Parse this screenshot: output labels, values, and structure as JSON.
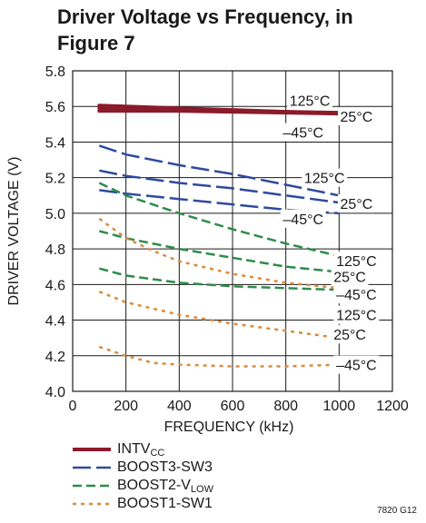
{
  "chart_data": {
    "type": "line",
    "title_lines": [
      "Driver Voltage vs Frequency, in",
      "Figure 7"
    ],
    "xlabel": "FREQUENCY (kHz)",
    "ylabel": "DRIVER VOLTAGE (V)",
    "xlim": [
      0,
      1200
    ],
    "ylim": [
      4.0,
      5.8
    ],
    "xticks": [
      0,
      200,
      400,
      600,
      800,
      1000,
      1200
    ],
    "xtick_labels": [
      "0",
      "200",
      "400",
      "600",
      "800",
      "1000",
      "1200"
    ],
    "yticks": [
      4.0,
      4.2,
      4.4,
      4.6,
      4.8,
      5.0,
      5.2,
      5.4,
      5.6,
      5.8
    ],
    "ytick_labels": [
      "4.0",
      "4.2",
      "4.4",
      "4.6",
      "4.8",
      "5.0",
      "5.2",
      "5.4",
      "5.6",
      "5.8"
    ],
    "grid": true,
    "legend_position": "bottom-left",
    "series": [
      {
        "name": "INTVCC",
        "color": "#8b1a2b",
        "dash": "solid",
        "width": 4,
        "temp": "125°C",
        "x": [
          100,
          200,
          400,
          600,
          800,
          1000
        ],
        "y": [
          5.605,
          5.6,
          5.59,
          5.58,
          5.57,
          5.56
        ]
      },
      {
        "name": "INTVCC",
        "color": "#8b1a2b",
        "dash": "solid",
        "width": 4,
        "temp": "25°C",
        "x": [
          100,
          200,
          400,
          600,
          800,
          1000
        ],
        "y": [
          5.59,
          5.585,
          5.58,
          5.575,
          5.57,
          5.565
        ]
      },
      {
        "name": "INTVCC",
        "color": "#8b1a2b",
        "dash": "solid",
        "width": 4,
        "temp": "–45°C",
        "x": [
          100,
          200,
          400,
          600,
          800,
          1000
        ],
        "y": [
          5.575,
          5.575,
          5.575,
          5.57,
          5.565,
          5.56
        ]
      },
      {
        "name": "BOOST3-SW3",
        "color": "#2e4a9e",
        "dash": "long",
        "width": 2.5,
        "temp": "125°C",
        "x": [
          100,
          200,
          400,
          600,
          800,
          1000
        ],
        "y": [
          5.38,
          5.33,
          5.27,
          5.22,
          5.16,
          5.1
        ]
      },
      {
        "name": "BOOST3-SW3",
        "color": "#2e4a9e",
        "dash": "long",
        "width": 2.5,
        "temp": "25°C",
        "x": [
          100,
          200,
          400,
          600,
          800,
          1000
        ],
        "y": [
          5.24,
          5.21,
          5.17,
          5.14,
          5.1,
          5.06
        ]
      },
      {
        "name": "BOOST3-SW3",
        "color": "#2e4a9e",
        "dash": "long",
        "width": 2.5,
        "temp": "–45°C",
        "x": [
          100,
          200,
          400,
          600,
          800,
          1000
        ],
        "y": [
          5.13,
          5.11,
          5.08,
          5.05,
          5.02,
          5.0
        ]
      },
      {
        "name": "BOOST2-VLOW",
        "color": "#2e8b4a",
        "dash": "medium",
        "width": 2.5,
        "temp": "125°C",
        "x": [
          100,
          200,
          300,
          400,
          600,
          800,
          1000
        ],
        "y": [
          5.17,
          5.1,
          5.05,
          5.0,
          4.91,
          4.83,
          4.76
        ]
      },
      {
        "name": "BOOST2-VLOW",
        "color": "#2e8b4a",
        "dash": "medium",
        "width": 2.5,
        "temp": "25°C",
        "x": [
          100,
          200,
          400,
          600,
          800,
          1000
        ],
        "y": [
          4.9,
          4.86,
          4.8,
          4.75,
          4.7,
          4.67
        ]
      },
      {
        "name": "BOOST2-VLOW",
        "color": "#2e8b4a",
        "dash": "medium",
        "width": 2.5,
        "temp": "–45°C",
        "x": [
          100,
          200,
          400,
          600,
          800,
          1000
        ],
        "y": [
          4.69,
          4.65,
          4.61,
          4.59,
          4.58,
          4.57
        ]
      },
      {
        "name": "BOOST1-SW1",
        "color": "#d98c3f",
        "dash": "short",
        "width": 2.5,
        "temp": "125°C",
        "x": [
          100,
          200,
          300,
          400,
          600,
          800,
          1000
        ],
        "y": [
          4.97,
          4.86,
          4.79,
          4.73,
          4.66,
          4.61,
          4.58
        ]
      },
      {
        "name": "BOOST1-SW1",
        "color": "#d98c3f",
        "dash": "short",
        "width": 2.5,
        "temp": "25°C",
        "x": [
          100,
          200,
          400,
          600,
          800,
          1000
        ],
        "y": [
          4.56,
          4.5,
          4.43,
          4.38,
          4.34,
          4.3
        ]
      },
      {
        "name": "BOOST1-SW1",
        "color": "#d98c3f",
        "dash": "short",
        "width": 2.5,
        "temp": "–45°C",
        "x": [
          100,
          200,
          300,
          400,
          600,
          800,
          1000
        ],
        "y": [
          4.25,
          4.2,
          4.16,
          4.15,
          4.14,
          4.14,
          4.15
        ]
      }
    ],
    "annotations": [
      {
        "text": "125°C",
        "x": 890,
        "y": 5.635
      },
      {
        "text": "25°C",
        "x": 1065,
        "y": 5.545
      },
      {
        "text": "–45°C",
        "x": 865,
        "y": 5.455
      },
      {
        "text": "125°C",
        "x": 945,
        "y": 5.2
      },
      {
        "text": "25°C",
        "x": 1065,
        "y": 5.055
      },
      {
        "text": "–45°C",
        "x": 865,
        "y": 4.97
      },
      {
        "text": "125°C",
        "x": 1065,
        "y": 4.735
      },
      {
        "text": "25°C",
        "x": 1040,
        "y": 4.645
      },
      {
        "text": "–45°C",
        "x": 1065,
        "y": 4.545
      },
      {
        "text": "125°C",
        "x": 1065,
        "y": 4.43
      },
      {
        "text": "25°C",
        "x": 1040,
        "y": 4.32
      },
      {
        "text": "–45°C",
        "x": 1065,
        "y": 4.15
      }
    ]
  },
  "legend": [
    {
      "label": "INTV",
      "sub": "CC",
      "color": "#8b1a2b",
      "dash": "solid"
    },
    {
      "label": "BOOST3-SW3",
      "sub": "",
      "color": "#2e4a9e",
      "dash": "long"
    },
    {
      "label": "BOOST2-V",
      "sub": "LOW",
      "color": "#2e8b4a",
      "dash": "medium"
    },
    {
      "label": "BOOST1-SW1",
      "sub": "",
      "color": "#d98c3f",
      "dash": "short"
    }
  ],
  "figure_code": "7820 G12"
}
